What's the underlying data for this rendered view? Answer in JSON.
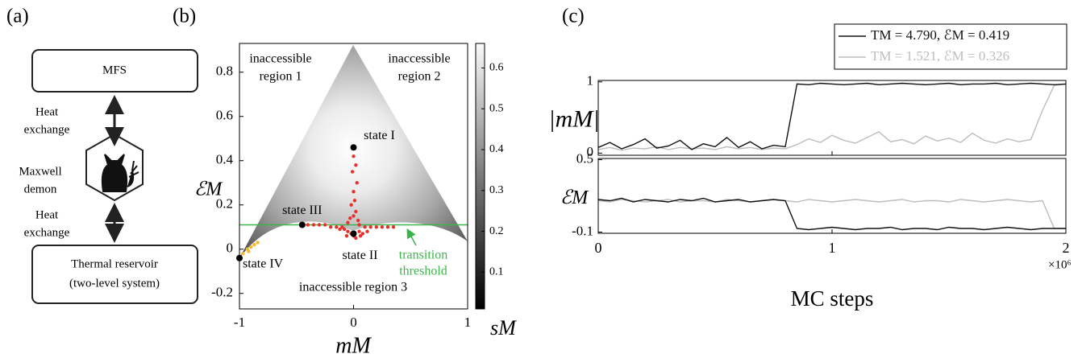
{
  "panel_labels": [
    "(a)",
    "(b)",
    "(c)"
  ],
  "diagram": {
    "nodes": [
      {
        "lines": [
          "MFS"
        ]
      },
      {
        "lines": [
          "Maxwell",
          "demon"
        ]
      },
      {
        "lines": [
          "Thermal reservoir",
          "(two-level system)"
        ]
      }
    ],
    "edges": [
      {
        "lines": [
          "Heat",
          "exchange"
        ]
      },
      {
        "lines": [
          "Heat",
          "exchange"
        ]
      }
    ]
  },
  "chart_data": [
    {
      "type": "scatter",
      "xlabel": "mM",
      "ylabel": "ℰM",
      "xlim": [
        -1,
        1
      ],
      "xticks": [
        -1,
        0,
        1
      ],
      "ylim": [
        -0.27,
        0.93
      ],
      "yticks": [
        -0.2,
        0,
        0.2,
        0.4,
        0.6,
        0.8
      ],
      "colorbar": {
        "label": "sM",
        "lim": [
          0.01,
          0.66
        ],
        "ticks": [
          0.1,
          0.2,
          0.3,
          0.4,
          0.5,
          0.6
        ]
      },
      "regions": [
        [
          "inaccessible",
          "region 1"
        ],
        [
          "inaccessible",
          "region 2"
        ],
        [
          "inaccessible region 3"
        ]
      ],
      "threshold": {
        "value": 0.11,
        "color": "#3cb44b",
        "lines": [
          "transition",
          "threshold"
        ]
      },
      "series": [
        {
          "color": "#e8302a",
          "x": [
            0,
            0.02,
            -0.01,
            0.03,
            0,
            0.01,
            -0.02,
            0.02,
            0,
            -0.03,
            0.04,
            -0.05,
            0.05,
            -0.1,
            0.1,
            -0.15,
            0.15,
            -0.2,
            0.2,
            -0.25,
            0.25,
            -0.3,
            0.3,
            -0.35,
            0.05,
            -0.05,
            0.08,
            -0.08,
            0.12,
            -0.12,
            0,
            0.02,
            -0.02,
            0.06,
            -0.06,
            -0.4,
            0.35
          ],
          "values": [
            0.42,
            0.38,
            0.35,
            0.3,
            0.26,
            0.22,
            0.2,
            0.17,
            0.15,
            0.14,
            0.13,
            0.12,
            0.11,
            0.1,
            0.1,
            0.1,
            0.1,
            0.1,
            0.1,
            0.11,
            0.1,
            0.11,
            0.1,
            0.11,
            0.08,
            0.08,
            0.07,
            0.09,
            0.08,
            0.09,
            0.06,
            0.05,
            0.07,
            0.06,
            0.06,
            0.11,
            0.1
          ]
        },
        {
          "color": "#f5b82e",
          "x": [
            -0.97,
            -0.93,
            -0.9,
            -0.87,
            -0.84,
            -0.92
          ],
          "values": [
            -0.02,
            0,
            0.01,
            0.02,
            0.03,
            -0.01
          ]
        },
        {
          "color": "#000000",
          "x": [
            0,
            0,
            -0.45,
            -1
          ],
          "values": [
            0.46,
            0.07,
            0.11,
            -0.04
          ],
          "labels": [
            "state I",
            "state II",
            "state III",
            "state IV"
          ]
        }
      ]
    },
    {
      "type": "line",
      "xlabel": "MC steps",
      "x_multiplier": "×10⁶",
      "xlim": [
        0,
        2
      ],
      "xticks": [
        0,
        1,
        2
      ],
      "x": [
        0,
        0.05,
        0.1,
        0.15,
        0.2,
        0.25,
        0.3,
        0.35,
        0.4,
        0.45,
        0.5,
        0.55,
        0.6,
        0.65,
        0.7,
        0.75,
        0.8,
        0.85,
        0.9,
        0.95,
        1,
        1.05,
        1.1,
        1.15,
        1.2,
        1.25,
        1.3,
        1.35,
        1.4,
        1.45,
        1.5,
        1.55,
        1.6,
        1.65,
        1.7,
        1.75,
        1.8,
        1.85,
        1.9,
        1.95,
        2
      ],
      "series": [
        {
          "name": "TM = 4.790, ℰM = 0.419",
          "color": "#111111"
        },
        {
          "name": "TM = 1.521, ℰM = 0.326",
          "color": "#bdbdbd"
        }
      ],
      "subplots": [
        {
          "ylabel": "|mM|",
          "ylim": [
            -0.03,
            1.02
          ],
          "yticks": [
            0,
            1
          ],
          "values": [
            [
              0.08,
              0.15,
              0.06,
              0.12,
              0.2,
              0.07,
              0.1,
              0.18,
              0.05,
              0.13,
              0.09,
              0.22,
              0.08,
              0.16,
              0.06,
              0.11,
              0.09,
              0.97,
              0.96,
              0.98,
              0.97,
              0.96,
              0.97,
              0.98,
              0.96,
              0.97,
              0.98,
              0.97,
              0.96,
              0.97,
              0.98,
              0.96,
              0.97,
              0.97,
              0.98,
              0.96,
              0.97,
              0.98,
              0.97,
              0.96,
              0.97
            ],
            [
              0.05,
              0.08,
              0.04,
              0.07,
              0.06,
              0.09,
              0.05,
              0.08,
              0.06,
              0.07,
              0.05,
              0.09,
              0.06,
              0.08,
              0.05,
              0.07,
              0.06,
              0.12,
              0.2,
              0.15,
              0.25,
              0.18,
              0.14,
              0.22,
              0.3,
              0.16,
              0.19,
              0.13,
              0.24,
              0.17,
              0.21,
              0.15,
              0.28,
              0.18,
              0.14,
              0.2,
              0.16,
              0.19,
              0.6,
              0.95,
              0.97
            ]
          ]
        },
        {
          "ylabel": "ℰM",
          "ylim": [
            -0.11,
            0.51
          ],
          "yticks": [
            -0.1,
            0.5
          ],
          "values": [
            [
              0.17,
              0.16,
              0.18,
              0.15,
              0.17,
              0.16,
              0.15,
              0.17,
              0.16,
              0.18,
              0.15,
              0.16,
              0.17,
              0.15,
              0.16,
              0.17,
              0.16,
              -0.07,
              -0.08,
              -0.07,
              -0.06,
              -0.07,
              -0.08,
              -0.07,
              -0.07,
              -0.06,
              -0.08,
              -0.07,
              -0.07,
              -0.08,
              -0.06,
              -0.07,
              -0.07,
              -0.08,
              -0.07,
              -0.06,
              -0.07,
              -0.08,
              -0.07,
              -0.07,
              -0.07
            ],
            [
              0.16,
              0.15,
              0.17,
              0.16,
              0.15,
              0.16,
              0.17,
              0.15,
              0.16,
              0.16,
              0.15,
              0.17,
              0.16,
              0.15,
              0.16,
              0.17,
              0.16,
              0.15,
              0.17,
              0.16,
              0.15,
              0.16,
              0.17,
              0.16,
              0.15,
              0.16,
              0.17,
              0.15,
              0.16,
              0.16,
              0.15,
              0.17,
              0.16,
              0.15,
              0.16,
              0.17,
              0.16,
              0.15,
              0.16,
              -0.07,
              -0.07
            ]
          ]
        }
      ]
    }
  ]
}
